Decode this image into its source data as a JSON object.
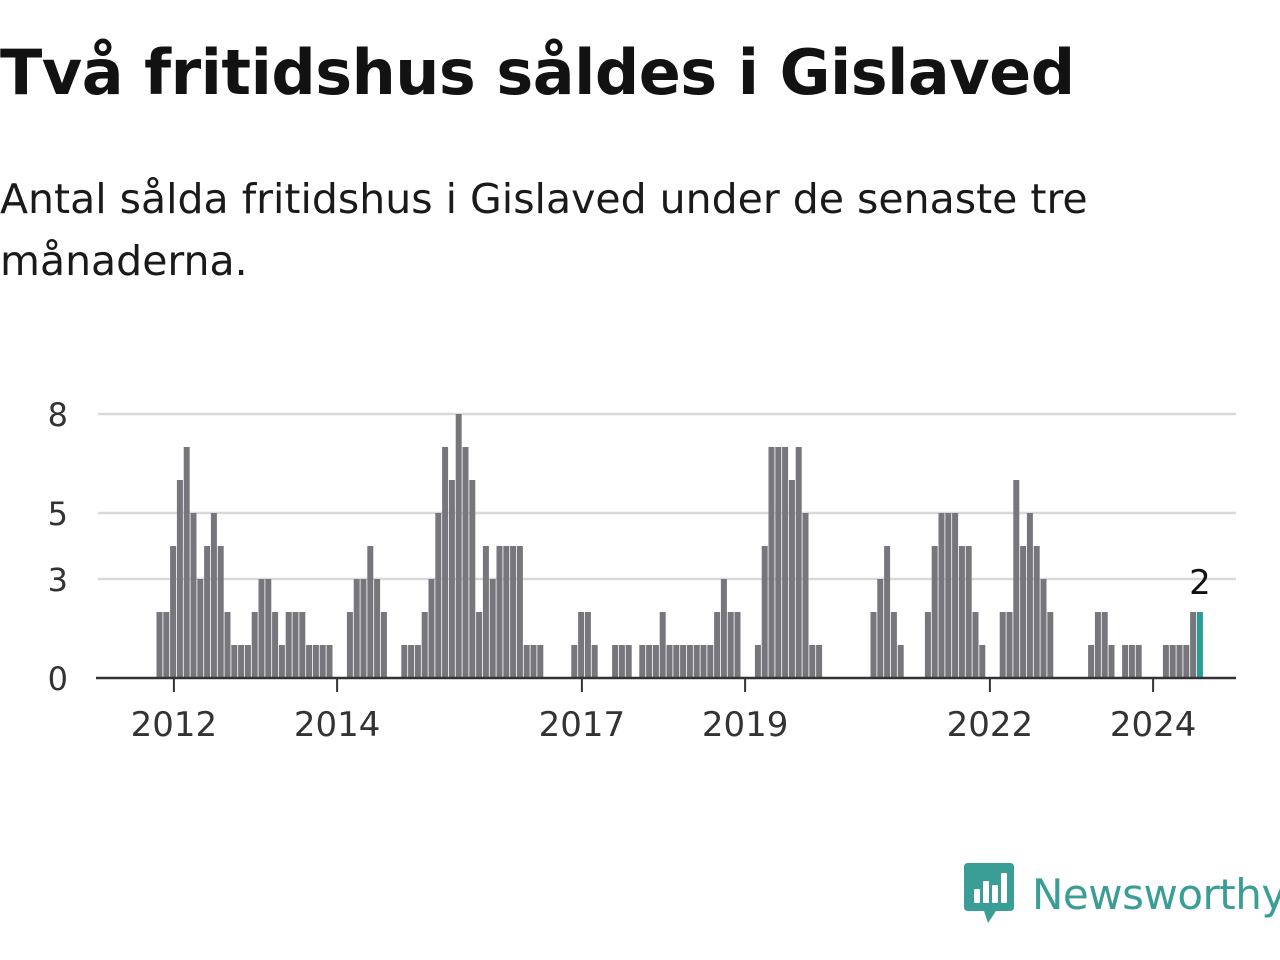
{
  "title": "Två fritidshus såldes i Gislaved",
  "subtitle": "Antal sålda fritidshus i Gislaved under de senaste tre månaderna.",
  "brand": {
    "name": "Newsworthy",
    "icon": "newsworthy-logo-icon",
    "color": "#3a9e96"
  },
  "colors": {
    "bar": "#77767c",
    "highlight": "#2a9d93",
    "grid": "#d9d9d9",
    "axis": "#333333"
  },
  "chart_data": {
    "type": "bar",
    "title": "Två fritidshus såldes i Gislaved",
    "subtitle": "Antal sålda fritidshus i Gislaved under de senaste tre månaderna.",
    "xlabel": "",
    "ylabel": "",
    "ylim": [
      0,
      9
    ],
    "yticks": [
      0,
      3,
      5,
      8
    ],
    "xticks": [
      "2012",
      "2014",
      "2017",
      "2019",
      "2022",
      "2024"
    ],
    "grid": true,
    "legend": "none",
    "start": "2011-10",
    "frequency": "monthly",
    "highlight_label": "2",
    "values": [
      2,
      2,
      4,
      6,
      7,
      5,
      3,
      4,
      5,
      4,
      2,
      1,
      1,
      1,
      2,
      3,
      3,
      2,
      1,
      2,
      2,
      2,
      1,
      1,
      1,
      1,
      0,
      0,
      2,
      3,
      3,
      4,
      3,
      2,
      0,
      0,
      1,
      1,
      1,
      2,
      3,
      5,
      7,
      6,
      8,
      7,
      6,
      2,
      4,
      3,
      4,
      4,
      4,
      4,
      1,
      1,
      1,
      0,
      0,
      0,
      0,
      1,
      2,
      2,
      1,
      0,
      0,
      1,
      1,
      1,
      0,
      1,
      1,
      1,
      2,
      1,
      1,
      1,
      1,
      1,
      1,
      1,
      2,
      3,
      2,
      2,
      0,
      0,
      1,
      4,
      7,
      7,
      7,
      6,
      7,
      5,
      1,
      1,
      0,
      0,
      0,
      0,
      0,
      0,
      0,
      2,
      3,
      4,
      2,
      1,
      0,
      0,
      0,
      2,
      4,
      5,
      5,
      5,
      4,
      4,
      2,
      1,
      0,
      0,
      2,
      2,
      6,
      4,
      5,
      4,
      3,
      2,
      0,
      0,
      0,
      0,
      0,
      1,
      2,
      2,
      1,
      0,
      1,
      1,
      1,
      0,
      0,
      0,
      1,
      1,
      1,
      1,
      2,
      2
    ]
  }
}
